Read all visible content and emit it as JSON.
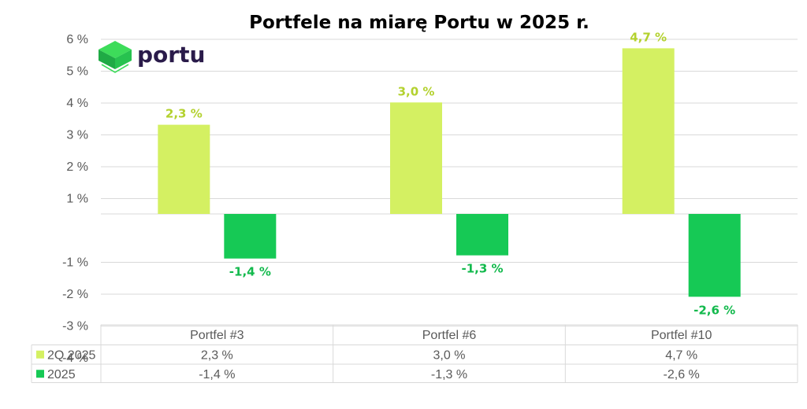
{
  "brand": {
    "name": "portu",
    "colors": {
      "logo_green_light": "#3ddc5a",
      "logo_green_dark": "#1faa45",
      "text": "#2a1b4a"
    }
  },
  "chart_data": {
    "type": "bar",
    "title": "Portfele na miarę Portu w 2025 r.",
    "categories": [
      "Portfel #3",
      "Portfel #6",
      "Portfel #10"
    ],
    "series": [
      {
        "name": "2Q 2025",
        "color": "#d4f062",
        "label_color": "#b3d12e",
        "values": [
          2.3,
          3.0,
          4.7
        ],
        "labels": [
          "2,3 %",
          "3,0 %",
          "4,7 %"
        ]
      },
      {
        "name": "2025",
        "color": "#16c955",
        "label_color": "#12b94c",
        "values": [
          -1.4,
          -1.3,
          -2.6
        ],
        "labels": [
          "-1,4 %",
          "-1,3 %",
          "-2,6 %"
        ]
      }
    ],
    "y_tick_labels": [
      "6 %",
      "5 %",
      "4 %",
      "3 %",
      "2 %",
      "1 %",
      "-1 %",
      "-2 %",
      "-3 %",
      "-4 %"
    ],
    "ylim": [
      -4,
      6
    ],
    "grid": true,
    "legend": "data-table",
    "data_table": {
      "rows": [
        {
          "series": "2Q 2025",
          "cells": [
            "2,3 %",
            "3,0 %",
            "4,7 %"
          ]
        },
        {
          "series": "2025",
          "cells": [
            "-1,4 %",
            "-1,3 %",
            "-2,6 %"
          ]
        }
      ]
    },
    "xlabel": "",
    "ylabel": ""
  }
}
